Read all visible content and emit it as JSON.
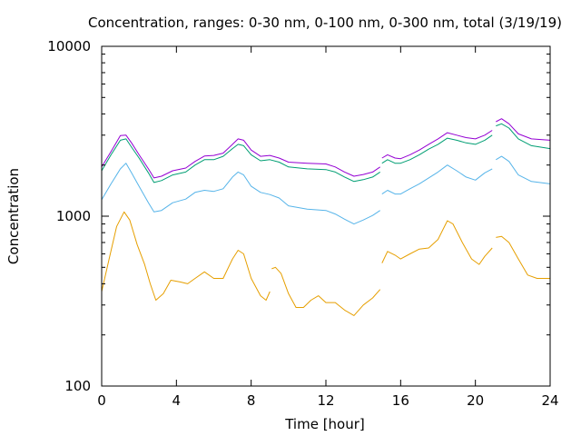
{
  "chart_data": {
    "type": "line",
    "title": "Concentration, ranges: 0-30 nm, 0-100 nm, 0-300 nm, total (3/19/19)",
    "xlabel": "Time [hour]",
    "ylabel": "Concentration",
    "xlim": [
      0,
      24
    ],
    "ylim": [
      100,
      10000
    ],
    "yscale": "log",
    "xticks": [
      "0",
      "4",
      "8",
      "12",
      "16",
      "20",
      "24"
    ],
    "yticks": [
      "100",
      "1000",
      "10000"
    ],
    "grid": false,
    "legend": "none",
    "series": [
      {
        "color": "#9400d3",
        "segments": [
          [
            [
              0,
              1950
            ],
            [
              0.5,
              2400
            ],
            [
              1,
              2980
            ],
            [
              1.3,
              3000
            ],
            [
              1.6,
              2700
            ],
            [
              2,
              2300
            ],
            [
              2.5,
              1900
            ],
            [
              2.8,
              1680
            ],
            [
              3.2,
              1720
            ],
            [
              3.8,
              1850
            ],
            [
              4.5,
              1920
            ],
            [
              5,
              2100
            ],
            [
              5.5,
              2260
            ],
            [
              6,
              2280
            ],
            [
              6.5,
              2350
            ],
            [
              7,
              2650
            ],
            [
              7.3,
              2850
            ],
            [
              7.6,
              2800
            ],
            [
              8,
              2450
            ],
            [
              8.5,
              2250
            ],
            [
              9,
              2280
            ],
            [
              9.5,
              2200
            ],
            [
              10,
              2080
            ],
            [
              11,
              2050
            ],
            [
              12,
              2030
            ],
            [
              12.5,
              1950
            ],
            [
              13,
              1820
            ],
            [
              13.5,
              1720
            ],
            [
              14,
              1760
            ],
            [
              14.5,
              1820
            ],
            [
              14.9,
              1950
            ]
          ],
          [
            [
              15,
              2200
            ],
            [
              15.3,
              2300
            ],
            [
              15.7,
              2200
            ],
            [
              16,
              2180
            ],
            [
              16.5,
              2300
            ],
            [
              17,
              2450
            ],
            [
              17.5,
              2650
            ],
            [
              18,
              2850
            ],
            [
              18.5,
              3100
            ],
            [
              19,
              3000
            ],
            [
              19.5,
              2900
            ],
            [
              20,
              2850
            ],
            [
              20.5,
              3000
            ],
            [
              20.9,
              3200
            ]
          ],
          [
            [
              21.1,
              3600
            ],
            [
              21.4,
              3750
            ],
            [
              21.8,
              3500
            ],
            [
              22.3,
              3050
            ],
            [
              23,
              2850
            ],
            [
              24,
              2800
            ]
          ]
        ]
      },
      {
        "color": "#009e73",
        "segments": [
          [
            [
              0,
              1850
            ],
            [
              0.5,
              2300
            ],
            [
              1,
              2800
            ],
            [
              1.3,
              2850
            ],
            [
              1.6,
              2550
            ],
            [
              2,
              2200
            ],
            [
              2.5,
              1800
            ],
            [
              2.8,
              1580
            ],
            [
              3.2,
              1620
            ],
            [
              3.8,
              1750
            ],
            [
              4.5,
              1820
            ],
            [
              5,
              2000
            ],
            [
              5.5,
              2150
            ],
            [
              6,
              2150
            ],
            [
              6.5,
              2250
            ],
            [
              7,
              2500
            ],
            [
              7.3,
              2650
            ],
            [
              7.6,
              2600
            ],
            [
              8,
              2300
            ],
            [
              8.5,
              2120
            ],
            [
              9,
              2150
            ],
            [
              9.5,
              2080
            ],
            [
              10,
              1950
            ],
            [
              11,
              1900
            ],
            [
              12,
              1880
            ],
            [
              12.5,
              1820
            ],
            [
              13,
              1700
            ],
            [
              13.5,
              1600
            ],
            [
              14,
              1640
            ],
            [
              14.5,
              1700
            ],
            [
              14.9,
              1820
            ]
          ],
          [
            [
              15,
              2050
            ],
            [
              15.3,
              2150
            ],
            [
              15.7,
              2050
            ],
            [
              16,
              2050
            ],
            [
              16.5,
              2150
            ],
            [
              17,
              2300
            ],
            [
              17.5,
              2480
            ],
            [
              18,
              2650
            ],
            [
              18.5,
              2880
            ],
            [
              19,
              2800
            ],
            [
              19.5,
              2700
            ],
            [
              20,
              2650
            ],
            [
              20.5,
              2800
            ],
            [
              20.9,
              3000
            ]
          ],
          [
            [
              21.1,
              3400
            ],
            [
              21.4,
              3500
            ],
            [
              21.8,
              3300
            ],
            [
              22.3,
              2850
            ],
            [
              23,
              2600
            ],
            [
              24,
              2500
            ]
          ]
        ]
      },
      {
        "color": "#56b4e9",
        "segments": [
          [
            [
              0,
              1250
            ],
            [
              0.5,
              1550
            ],
            [
              1,
              1900
            ],
            [
              1.3,
              2050
            ],
            [
              1.6,
              1800
            ],
            [
              2,
              1500
            ],
            [
              2.5,
              1200
            ],
            [
              2.8,
              1060
            ],
            [
              3.2,
              1080
            ],
            [
              3.8,
              1200
            ],
            [
              4.5,
              1260
            ],
            [
              5,
              1380
            ],
            [
              5.5,
              1420
            ],
            [
              6,
              1400
            ],
            [
              6.5,
              1450
            ],
            [
              7,
              1700
            ],
            [
              7.3,
              1820
            ],
            [
              7.6,
              1750
            ],
            [
              8,
              1500
            ],
            [
              8.5,
              1380
            ],
            [
              9,
              1340
            ],
            [
              9.5,
              1280
            ],
            [
              10,
              1150
            ],
            [
              11,
              1100
            ],
            [
              12,
              1080
            ],
            [
              12.5,
              1030
            ],
            [
              13,
              960
            ],
            [
              13.5,
              900
            ],
            [
              14,
              950
            ],
            [
              14.5,
              1010
            ],
            [
              14.9,
              1080
            ]
          ],
          [
            [
              15,
              1350
            ],
            [
              15.3,
              1420
            ],
            [
              15.7,
              1350
            ],
            [
              16,
              1350
            ],
            [
              16.5,
              1450
            ],
            [
              17,
              1550
            ],
            [
              17.5,
              1680
            ],
            [
              18,
              1820
            ],
            [
              18.5,
              2000
            ],
            [
              19,
              1850
            ],
            [
              19.5,
              1700
            ],
            [
              20,
              1630
            ],
            [
              20.5,
              1800
            ],
            [
              20.9,
              1900
            ]
          ],
          [
            [
              21.1,
              2150
            ],
            [
              21.4,
              2250
            ],
            [
              21.8,
              2100
            ],
            [
              22.3,
              1750
            ],
            [
              23,
              1600
            ],
            [
              24,
              1550
            ]
          ]
        ]
      },
      {
        "color": "#e69f00",
        "segments": [
          [
            [
              0,
              360
            ],
            [
              0.4,
              560
            ],
            [
              0.8,
              870
            ],
            [
              1.2,
              1060
            ],
            [
              1.5,
              950
            ],
            [
              1.9,
              680
            ],
            [
              2.3,
              520
            ],
            [
              2.6,
              400
            ],
            [
              2.9,
              320
            ],
            [
              3.3,
              350
            ],
            [
              3.7,
              420
            ],
            [
              4.2,
              410
            ],
            [
              4.6,
              400
            ],
            [
              5,
              430
            ],
            [
              5.5,
              470
            ],
            [
              6,
              430
            ],
            [
              6.5,
              430
            ],
            [
              7,
              560
            ],
            [
              7.3,
              630
            ],
            [
              7.6,
              600
            ],
            [
              8,
              430
            ],
            [
              8.5,
              340
            ],
            [
              8.8,
              320
            ],
            [
              9,
              360
            ]
          ],
          [
            [
              9.1,
              490
            ],
            [
              9.3,
              500
            ],
            [
              9.6,
              460
            ],
            [
              10,
              350
            ],
            [
              10.4,
              290
            ],
            [
              10.8,
              290
            ],
            [
              11.2,
              320
            ],
            [
              11.6,
              340
            ],
            [
              12,
              310
            ],
            [
              12.5,
              310
            ],
            [
              13,
              280
            ],
            [
              13.5,
              260
            ],
            [
              14,
              300
            ],
            [
              14.5,
              330
            ],
            [
              14.9,
              370
            ]
          ],
          [
            [
              15,
              530
            ],
            [
              15.3,
              620
            ],
            [
              15.7,
              590
            ],
            [
              16,
              560
            ],
            [
              16.5,
              600
            ],
            [
              17,
              640
            ],
            [
              17.5,
              650
            ],
            [
              18,
              730
            ],
            [
              18.5,
              940
            ],
            [
              18.8,
              900
            ],
            [
              19.3,
              700
            ],
            [
              19.8,
              560
            ],
            [
              20.2,
              520
            ],
            [
              20.5,
              580
            ],
            [
              20.9,
              650
            ]
          ],
          [
            [
              21.1,
              750
            ],
            [
              21.4,
              760
            ],
            [
              21.8,
              700
            ],
            [
              22.3,
              560
            ],
            [
              22.8,
              450
            ],
            [
              23.3,
              430
            ],
            [
              24,
              430
            ]
          ]
        ]
      }
    ]
  }
}
